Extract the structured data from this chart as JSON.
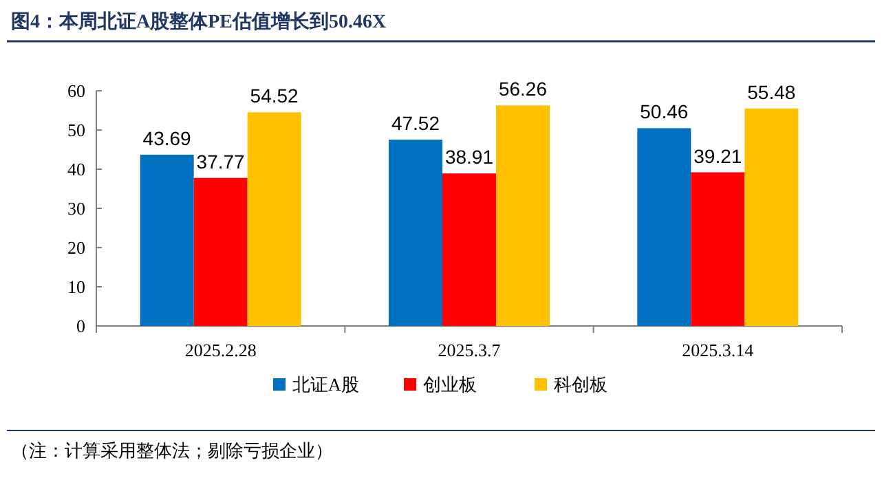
{
  "chart_data": {
    "type": "bar",
    "title": "图4：本周北证A股整体PE估值增长到50.46X",
    "categories": [
      "2025.2.28",
      "2025.3.7",
      "2025.3.14"
    ],
    "series": [
      {
        "name": "北证A股",
        "color": "#0070c0",
        "values": [
          43.69,
          47.52,
          50.46
        ]
      },
      {
        "name": "创业板",
        "color": "#ff0000",
        "values": [
          37.77,
          38.91,
          39.21
        ]
      },
      {
        "name": "科创板",
        "color": "#ffc000",
        "values": [
          54.52,
          56.26,
          55.48
        ]
      }
    ],
    "ylim": [
      0,
      60
    ],
    "yticks": [
      0,
      10,
      20,
      30,
      40,
      50,
      60
    ],
    "data_labels": true,
    "legend": "bottom",
    "grid": false,
    "annotations": [
      "（注：计算采用整体法；剔除亏损企业）"
    ]
  }
}
